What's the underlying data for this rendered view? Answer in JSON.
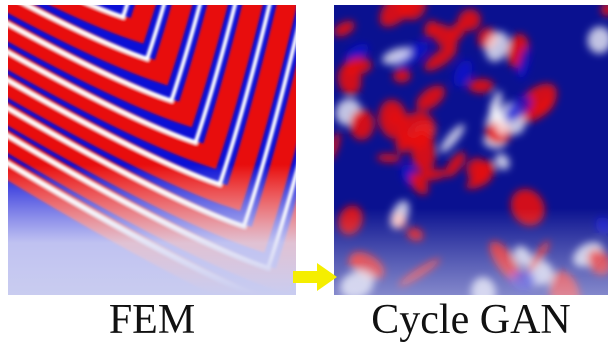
{
  "figure": {
    "left_caption": "FEM",
    "right_caption": "Cycle GAN"
  },
  "colors": {
    "red": "#e8100f",
    "blue": "#0b0fd6",
    "navy": "#0a1190",
    "white": "#ffffff",
    "fade": "#c9ccf0",
    "arrow": "#f5ee00"
  },
  "icons": {
    "arrow": "right-arrow-icon"
  }
}
